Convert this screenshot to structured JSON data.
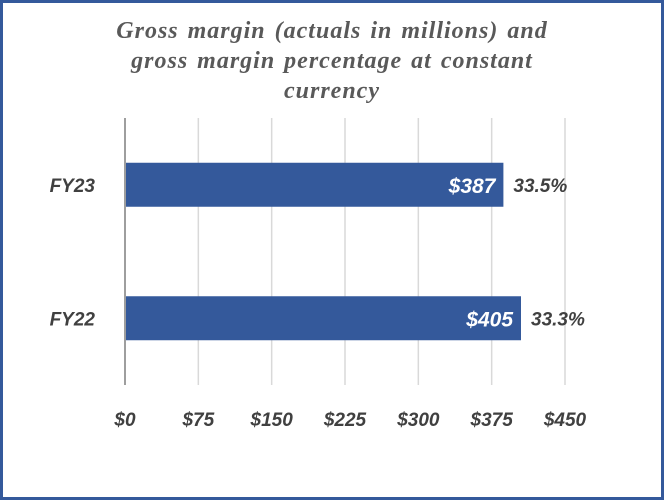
{
  "chart_data": {
    "type": "bar",
    "orientation": "horizontal",
    "title": "Gross margin (actuals in millions) and gross margin percentage at constant currency",
    "title_lines": [
      "Gross margin (actuals in millions) and",
      "gross margin percentage at constant",
      "currency"
    ],
    "categories": [
      "FY23",
      "FY22"
    ],
    "series": [
      {
        "values": [
          387,
          405
        ],
        "value_labels": [
          "$387",
          "$405"
        ],
        "percent_labels": [
          "33.5%",
          "33.3%"
        ]
      }
    ],
    "xlim": [
      0,
      450
    ],
    "x_ticks": [
      0,
      75,
      150,
      225,
      300,
      375,
      450
    ],
    "x_tick_labels": [
      "$0",
      "$75",
      "$150",
      "$225",
      "$300",
      "$375",
      "$450"
    ],
    "grid": "vertical",
    "xlabel": "",
    "ylabel": "",
    "colors": {
      "bar": "#34599b",
      "border": "#34599b",
      "grid": "#d9d9d9",
      "axis": "#7f7f7f",
      "text": "#404040",
      "title": "#595959"
    }
  }
}
